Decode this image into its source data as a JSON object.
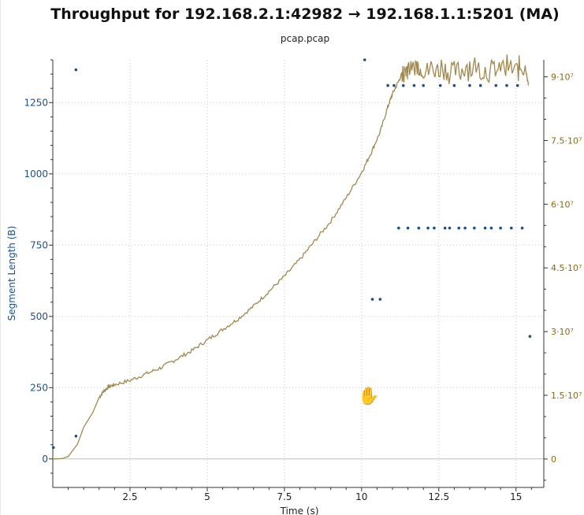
{
  "chart_data": {
    "type": "scatter",
    "title": "Throughput for 192.168.2.1:42982 → 192.168.1.1:5201 (MA)",
    "subtitle": "pcap.pcap",
    "xlabel": "Time (s)",
    "ylabel_left": "Segment Length (B)",
    "ylabel_right": "",
    "xlim": [
      0,
      15.9
    ],
    "ylim_left": [
      -100,
      1400
    ],
    "ylim_right": [
      -6700000,
      94000000
    ],
    "x_ticks": [
      2.5,
      5,
      7.5,
      10,
      12.5,
      15
    ],
    "x_tick_labels": [
      "2.5",
      "5",
      "7.5",
      "10",
      "12.5",
      "15"
    ],
    "y_left_ticks": [
      0,
      250,
      500,
      750,
      1000,
      1250
    ],
    "y_left_tick_labels": [
      "0",
      "250",
      "500",
      "750",
      "1000",
      "1250"
    ],
    "y_right_ticks": [
      0,
      15000000,
      30000000,
      45000000,
      60000000,
      75000000,
      90000000
    ],
    "y_right_tick_labels": [
      "0",
      "1.5·10⁷",
      "3·10⁷",
      "4.5·10⁷",
      "6·10⁷",
      "7.5·10⁷",
      "9·10⁷"
    ],
    "grid": true,
    "colors": {
      "segment_points": "#1f4f8a",
      "throughput_line": "#a08850",
      "grid": "#c8c8c8",
      "zero_line": "#bfbfbf",
      "left_axis_text": "#1f4f8a",
      "right_axis_text": "#8a6a1a"
    },
    "series": [
      {
        "kind": "points",
        "axis": "left",
        "x": [
          0.02,
          0.75,
          0.75,
          10.1,
          10.35,
          10.6,
          10.85,
          11.05,
          11.2,
          11.35,
          11.5,
          11.7,
          11.85,
          12.0,
          12.15,
          12.35,
          12.55,
          12.7,
          12.85,
          13.0,
          13.15,
          13.35,
          13.5,
          13.65,
          13.85,
          14.0,
          14.2,
          14.35,
          14.5,
          14.7,
          14.85,
          15.05,
          15.2,
          15.45
        ],
        "y": [
          40,
          1365,
          80,
          1400,
          560,
          560,
          1310,
          1310,
          810,
          1310,
          810,
          1310,
          810,
          1310,
          810,
          810,
          1310,
          810,
          810,
          1310,
          810,
          810,
          1310,
          810,
          1310,
          810,
          810,
          1310,
          810,
          1310,
          810,
          1310,
          810,
          430
        ]
      },
      {
        "kind": "line",
        "axis": "right",
        "x": [
          0,
          0.3,
          0.5,
          0.8,
          1.0,
          1.3,
          1.5,
          1.65,
          1.8,
          2.0,
          2.5,
          3.0,
          3.5,
          4.0,
          4.5,
          5.0,
          5.5,
          6.0,
          6.5,
          7.0,
          7.5,
          8.0,
          8.5,
          9.0,
          9.5,
          10.0,
          10.3,
          10.6,
          10.85,
          11.0,
          11.2,
          11.35,
          11.5,
          11.8,
          12.0,
          12.5,
          13.0,
          13.5,
          14.0,
          14.5,
          15.0,
          15.3,
          15.4
        ],
        "y": [
          0,
          100000,
          600000,
          3500000,
          7500000,
          11000000,
          14500000,
          16000000,
          17000000,
          17500000,
          18500000,
          20000000,
          21500000,
          23500000,
          25500000,
          28000000,
          30500000,
          33000000,
          36000000,
          39500000,
          43000000,
          47000000,
          51500000,
          56000000,
          61500000,
          67500000,
          72000000,
          77000000,
          83000000,
          86000000,
          89000000,
          91500000,
          93000000,
          93500000,
          92500000,
          93000000,
          92000000,
          93500000,
          92000000,
          93000000,
          93000000,
          92500000,
          88000000
        ]
      }
    ]
  },
  "cursor": {
    "icon": "grab-hand-icon",
    "glyph": "✋"
  }
}
